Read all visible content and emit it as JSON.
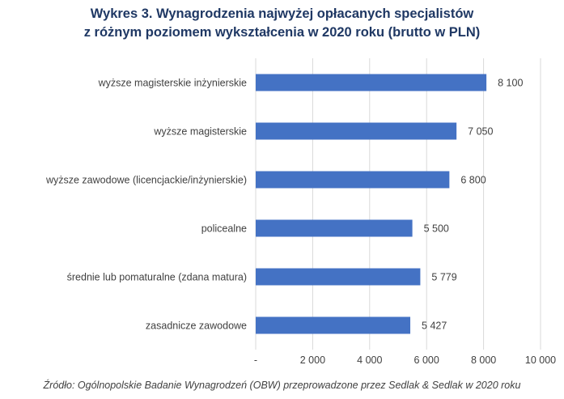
{
  "title_lines": [
    "Wykres 3. Wynagrodzenia najwyżej opłacanych specjalistów",
    "z różnym poziomem wykształcenia w 2020 roku (brutto w PLN)"
  ],
  "source": "Źródło: Ogólnopolskie Badanie Wynagrodzeń (OBW) przeprowadzone przez Sedlak & Sedlak w 2020 roku",
  "colors": {
    "bar": "#4472c4",
    "grid": "#d9d9d9",
    "text": "#404040",
    "title": "#1f3864"
  },
  "chart_data": {
    "type": "bar",
    "orientation": "horizontal",
    "categories": [
      "wyższe magisterskie inżynierskie",
      "wyższe magisterskie",
      "wyższe zawodowe (licencjackie/inżynierskie)",
      "policealne",
      "średnie lub pomaturalne (zdana matura)",
      "zasadnicze zawodowe"
    ],
    "values": [
      8100,
      7050,
      6800,
      5500,
      5779,
      5427
    ],
    "value_labels": [
      "8 100",
      "7 050",
      "6 800",
      "5 500",
      "5 779",
      "5 427"
    ],
    "xlim": [
      0,
      10000
    ],
    "xticks": [
      0,
      2000,
      4000,
      6000,
      8000,
      10000
    ],
    "xtick_labels": [
      "-",
      "2 000",
      "4 000",
      "6 000",
      "8 000",
      "10 000"
    ],
    "grid": "vertical",
    "legend": "none"
  }
}
